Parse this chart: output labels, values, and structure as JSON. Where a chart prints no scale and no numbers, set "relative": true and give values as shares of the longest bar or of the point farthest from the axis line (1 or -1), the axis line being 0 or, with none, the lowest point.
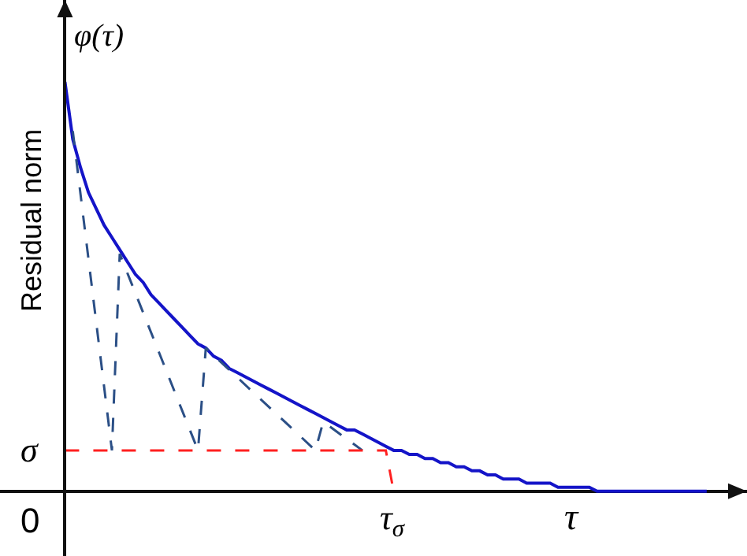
{
  "chart_data": {
    "type": "line",
    "relative": true,
    "ylabel": "Residual norm",
    "xlabel": "τ",
    "tick_labels": false,
    "annotations": [
      "φ(τ)",
      "σ",
      "0",
      "τ$_{σ}$"
    ],
    "line_style": "solid",
    "marker": "none",
    "grid": false,
    "categories": [
      null,
      null,
      null,
      null,
      null,
      null,
      null,
      null,
      null,
      null,
      null,
      null,
      null,
      null,
      null,
      null,
      null,
      null,
      null,
      null,
      null,
      null,
      null,
      null,
      null,
      null,
      null,
      null,
      null,
      null,
      null,
      null,
      null,
      null,
      null,
      null,
      null,
      null,
      null,
      null,
      null,
      null,
      null,
      null,
      null,
      null,
      null,
      null,
      null,
      null,
      null,
      null,
      null,
      null,
      null,
      null,
      null,
      null,
      null,
      null,
      null,
      null,
      null,
      null,
      null,
      null,
      null,
      null,
      null,
      null,
      null,
      null,
      null,
      null,
      null,
      null,
      null,
      null,
      null,
      null,
      null,
      null,
      null
    ],
    "series": [
      {
        "color": "#1414c8",
        "values": [
          1.0,
          0.86,
          0.79,
          0.73,
          0.69,
          0.65,
          0.62,
          0.59,
          0.56,
          0.53,
          0.51,
          0.48,
          0.46,
          0.44,
          0.42,
          0.4,
          0.38,
          0.36,
          0.35,
          0.33,
          0.32,
          0.3,
          0.29,
          0.28,
          0.27,
          0.26,
          0.25,
          0.24,
          0.23,
          0.22,
          0.21,
          0.2,
          0.19,
          0.18,
          0.17,
          0.16,
          0.15,
          0.15,
          0.14,
          0.13,
          0.12,
          0.11,
          0.1,
          0.1,
          0.09,
          0.09,
          0.08,
          0.08,
          0.07,
          0.07,
          0.06,
          0.06,
          0.05,
          0.05,
          0.04,
          0.04,
          0.03,
          0.03,
          0.03,
          0.02,
          0.02,
          0.02,
          0.02,
          0.01,
          0.01,
          0.01,
          0.01,
          0.01,
          0,
          0,
          0,
          0,
          0,
          0,
          0,
          0,
          0,
          0,
          0,
          0,
          0,
          0,
          0
        ]
      },
      {
        "color": "#2b4f86",
        "line_style": "dashed",
        "values": [
          null,
          0.88,
          null,
          null,
          null,
          null,
          0.1,
          0.58,
          null,
          null,
          null,
          null,
          null,
          null,
          null,
          null,
          null,
          0.1,
          0.35,
          null,
          null,
          null,
          null,
          null,
          null,
          null,
          null,
          null,
          null,
          null,
          null,
          null,
          0.1,
          0.17,
          null,
          null,
          null,
          null,
          0.1,
          null,
          null,
          null,
          null,
          null,
          null,
          null,
          null,
          null,
          null,
          null,
          null,
          null,
          null,
          null,
          null,
          null,
          null,
          null,
          null,
          null,
          null,
          null,
          null,
          null,
          null,
          null,
          null,
          null,
          null,
          null,
          null,
          null,
          null,
          null,
          null,
          null,
          null,
          null,
          null,
          null,
          null,
          null,
          null
        ]
      },
      {
        "color": "#ff2020",
        "line_style": "dashed",
        "values": [
          0.1,
          0.1,
          0.1,
          0.1,
          0.1,
          0.1,
          0.1,
          0.1,
          0.1,
          0.1,
          0.1,
          0.1,
          0.1,
          0.1,
          0.1,
          0.1,
          0.1,
          0.1,
          0.1,
          0.1,
          0.1,
          0.1,
          0.1,
          0.1,
          0.1,
          0.1,
          0.1,
          0.1,
          0.1,
          0.1,
          0.1,
          0.1,
          0.1,
          0.1,
          0.1,
          0.1,
          0.1,
          0.1,
          0.1,
          0.1,
          0.1,
          0.1,
          0,
          null,
          null,
          null,
          null,
          null,
          null,
          null,
          null,
          null,
          null,
          null,
          null,
          null,
          null,
          null,
          null,
          null,
          null,
          null,
          null,
          null,
          null,
          null,
          null,
          null,
          null,
          null,
          null,
          null,
          null,
          null,
          null,
          null,
          null,
          null,
          null,
          null,
          null,
          null,
          null
        ]
      }
    ]
  }
}
